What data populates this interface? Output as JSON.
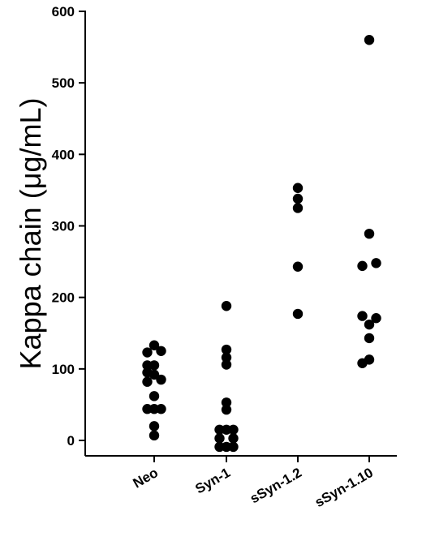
{
  "chart_data": {
    "type": "scatter",
    "ylabel": "Kappa chain (μg/mL)",
    "xlabel": "",
    "title": "",
    "ylim": [
      -20,
      600
    ],
    "yticks": [
      0,
      100,
      200,
      300,
      400,
      500,
      600
    ],
    "categories": [
      "Neo",
      "Syn-1",
      "sSyn-1.2",
      "sSyn-1.10"
    ],
    "groups": [
      {
        "category": "Neo",
        "points": [
          {
            "offset": 0,
            "value": 133
          },
          {
            "offset": -1,
            "value": 123
          },
          {
            "offset": 1,
            "value": 125
          },
          {
            "offset": -1,
            "value": 105
          },
          {
            "offset": 0,
            "value": 105
          },
          {
            "offset": -1,
            "value": 95
          },
          {
            "offset": 0,
            "value": 92
          },
          {
            "offset": 1,
            "value": 85
          },
          {
            "offset": -1,
            "value": 82
          },
          {
            "offset": 0,
            "value": 62
          },
          {
            "offset": -1,
            "value": 44
          },
          {
            "offset": 0,
            "value": 44
          },
          {
            "offset": 1,
            "value": 44
          },
          {
            "offset": 0,
            "value": 20
          },
          {
            "offset": 0,
            "value": 7
          }
        ]
      },
      {
        "category": "Syn-1",
        "points": [
          {
            "offset": 0,
            "value": 188
          },
          {
            "offset": 0,
            "value": 127
          },
          {
            "offset": 0,
            "value": 116
          },
          {
            "offset": 0,
            "value": 106
          },
          {
            "offset": 0,
            "value": 53
          },
          {
            "offset": 0,
            "value": 43
          },
          {
            "offset": -1,
            "value": 15
          },
          {
            "offset": 0,
            "value": 15
          },
          {
            "offset": 1,
            "value": 15
          },
          {
            "offset": -1,
            "value": 3
          },
          {
            "offset": 1,
            "value": 3
          },
          {
            "offset": -1,
            "value": -9
          },
          {
            "offset": 0,
            "value": -9
          },
          {
            "offset": 1,
            "value": -9
          }
        ]
      },
      {
        "category": "sSyn-1.2",
        "points": [
          {
            "offset": 0,
            "value": 353
          },
          {
            "offset": 0,
            "value": 338
          },
          {
            "offset": 0,
            "value": 325
          },
          {
            "offset": 0,
            "value": 243
          },
          {
            "offset": 0,
            "value": 177
          }
        ]
      },
      {
        "category": "sSyn-1.10",
        "points": [
          {
            "offset": 0,
            "value": 560
          },
          {
            "offset": 0,
            "value": 289
          },
          {
            "offset": -1,
            "value": 244
          },
          {
            "offset": 1,
            "value": 248
          },
          {
            "offset": -1,
            "value": 174
          },
          {
            "offset": 1,
            "value": 171
          },
          {
            "offset": 0,
            "value": 162
          },
          {
            "offset": 0,
            "value": 143
          },
          {
            "offset": -1,
            "value": 108
          },
          {
            "offset": 0,
            "value": 113
          }
        ]
      }
    ],
    "grid": false,
    "legend": "none"
  },
  "colors": {
    "marker": "#000000",
    "axis": "#000000"
  }
}
